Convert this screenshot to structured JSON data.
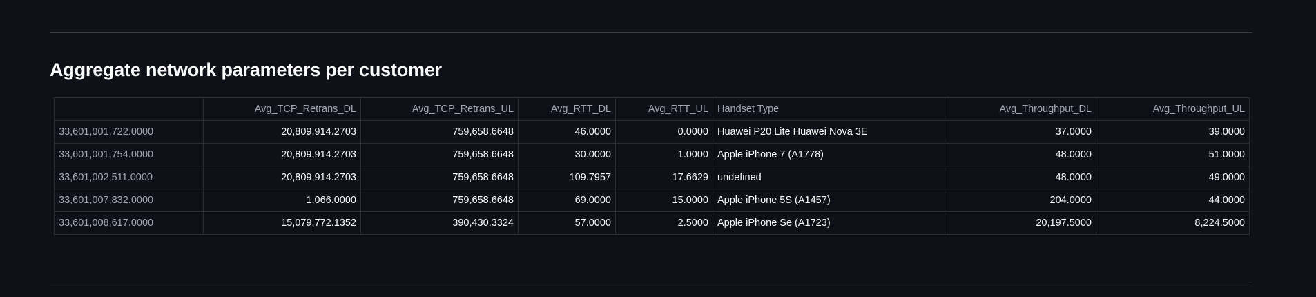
{
  "section": {
    "title": "Aggregate network parameters per customer"
  },
  "table": {
    "columns": [
      "",
      "Avg_TCP_Retrans_DL",
      "Avg_TCP_Retrans_UL",
      "Avg_RTT_DL",
      "Avg_RTT_UL",
      "Handset Type",
      "Avg_Throughput_DL",
      "Avg_Throughput_UL"
    ],
    "rows": [
      [
        "33,601,001,722.0000",
        "20,809,914.2703",
        "759,658.6648",
        "46.0000",
        "0.0000",
        "Huawei P20 Lite Huawei Nova 3E",
        "37.0000",
        "39.0000"
      ],
      [
        "33,601,001,754.0000",
        "20,809,914.2703",
        "759,658.6648",
        "30.0000",
        "1.0000",
        "Apple iPhone 7 (A1778)",
        "48.0000",
        "51.0000"
      ],
      [
        "33,601,002,511.0000",
        "20,809,914.2703",
        "759,658.6648",
        "109.7957",
        "17.6629",
        "undefined",
        "48.0000",
        "49.0000"
      ],
      [
        "33,601,007,832.0000",
        "1,066.0000",
        "759,658.6648",
        "69.0000",
        "15.0000",
        "Apple iPhone 5S (A1457)",
        "204.0000",
        "44.0000"
      ],
      [
        "33,601,008,617.0000",
        "15,079,772.1352",
        "390,430.3324",
        "57.0000",
        "2.5000",
        "Apple iPhone Se (A1723)",
        "20,197.5000",
        "8,224.5000"
      ]
    ]
  }
}
